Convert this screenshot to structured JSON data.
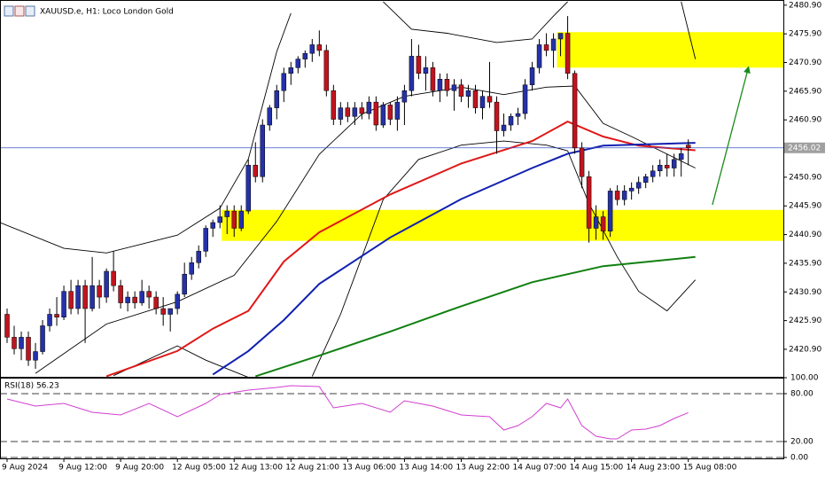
{
  "chart_data": {
    "type": "candlestick",
    "title": "XAUUSD.e, H1:  Loco London Gold",
    "up_color": "#2531a8",
    "down_color": "#c0141e",
    "xlim": [
      -1,
      109.4
    ],
    "ylim": [
      2416.1,
      2481.8
    ],
    "yticks": [
      {
        "value": 2480.9,
        "label": "2480.90"
      },
      {
        "value": 2475.9,
        "label": "2475.90"
      },
      {
        "value": 2470.9,
        "label": "2470.90"
      },
      {
        "value": 2465.9,
        "label": "2465.90"
      },
      {
        "value": 2460.9,
        "label": "2460.90"
      },
      {
        "value": 2450.9,
        "label": "2450.90"
      },
      {
        "value": 2445.9,
        "label": "2445.90"
      },
      {
        "value": 2440.9,
        "label": "2440.90"
      },
      {
        "value": 2435.9,
        "label": "2435.90"
      },
      {
        "value": 2430.9,
        "label": "2430.90"
      },
      {
        "value": 2425.9,
        "label": "2425.90"
      },
      {
        "value": 2420.9,
        "label": "2420.90"
      }
    ],
    "grid": false,
    "last_price": 2456.02,
    "last_price_color": "#3a54c8",
    "categories": [
      "9 Aug 2024",
      null,
      null,
      null,
      null,
      null,
      null,
      null,
      "9 Aug 12:00",
      null,
      null,
      null,
      null,
      null,
      null,
      null,
      "9 Aug 20:00",
      null,
      null,
      null,
      null,
      null,
      null,
      null,
      "12 Aug 05:00",
      null,
      null,
      null,
      null,
      null,
      null,
      null,
      "12 Aug 13:00",
      null,
      null,
      null,
      null,
      null,
      null,
      null,
      "12 Aug 21:00",
      null,
      null,
      null,
      null,
      null,
      null,
      null,
      "13 Aug 06:00",
      null,
      null,
      null,
      null,
      null,
      null,
      null,
      "13 Aug 14:00",
      null,
      null,
      null,
      null,
      null,
      null,
      null,
      "13 Aug 22:00",
      null,
      null,
      null,
      null,
      null,
      null,
      null,
      "14 Aug 07:00",
      null,
      null,
      null,
      null,
      null,
      null,
      null,
      "14 Aug 15:00",
      null,
      null,
      null,
      null,
      null,
      null,
      null,
      "14 Aug 23:00",
      null,
      null,
      null,
      null,
      null,
      null,
      null,
      "15 Aug 08:00"
    ],
    "open": [
      2427,
      2423,
      2421,
      2423,
      2419,
      2420.5,
      2425,
      2427,
      2426.5,
      2431,
      2428,
      2432,
      2428,
      2432,
      2430,
      2434.5,
      2432,
      2429,
      2430,
      2429,
      2431,
      2430,
      2428,
      2427,
      2428,
      2430.5,
      2434,
      2436,
      2438,
      2442,
      2443,
      2444,
      2445,
      2442,
      2445,
      2453,
      2451,
      2460,
      2463,
      2466,
      2469,
      2470,
      2471.5,
      2472.5,
      2474,
      2473,
      2466,
      2461,
      2463,
      2461.5,
      2463,
      2462,
      2464,
      2460,
      2463.5,
      2461,
      2464,
      2466,
      2472,
      2469,
      2470,
      2466,
      2468,
      2466,
      2467,
      2465,
      2466,
      2463,
      2465,
      2464,
      2459,
      2460,
      2461.5,
      2462,
      2467,
      2470,
      2474,
      2473,
      2475,
      2476,
      2469,
      2456,
      2451,
      2442,
      2444,
      2441.5,
      2448.5,
      2447,
      2448.5,
      2449,
      2450,
      2451,
      2452,
      2453,
      2452.5,
      2454,
      2456.5
    ],
    "high": [
      2428,
      2425,
      2424,
      2424,
      2422,
      2426,
      2428,
      2430,
      2432,
      2433,
      2433,
      2433,
      2437,
      2433,
      2435,
      2438,
      2433,
      2431,
      2431,
      2433,
      2432,
      2431,
      2430,
      2428,
      2431,
      2436,
      2437,
      2439,
      2442.5,
      2443.5,
      2446,
      2446,
      2446,
      2446,
      2454,
      2457,
      2461,
      2463.5,
      2467,
      2470,
      2471,
      2472,
      2473,
      2475,
      2476.5,
      2474,
      2467,
      2464,
      2464,
      2464,
      2464,
      2465,
      2465,
      2464,
      2464,
      2465,
      2467,
      2475,
      2474,
      2472,
      2471,
      2469,
      2469,
      2468,
      2468,
      2467,
      2467,
      2466,
      2471,
      2465,
      2462,
      2462,
      2463,
      2468,
      2471,
      2475,
      2476,
      2476,
      2476,
      2479,
      2469.5,
      2457,
      2452,
      2446,
      2445,
      2449,
      2449.5,
      2449.5,
      2450,
      2451,
      2451.5,
      2453,
      2454,
      2455,
      2455,
      2456,
      2457.5
    ],
    "low": [
      2422,
      2420,
      2419,
      2418,
      2417.5,
      2420,
      2424,
      2425,
      2426,
      2427,
      2427,
      2422,
      2427.5,
      2428,
      2429,
      2431,
      2428,
      2427.5,
      2428,
      2428.5,
      2428,
      2427,
      2425,
      2424,
      2427,
      2430,
      2433,
      2435,
      2437,
      2440.5,
      2442,
      2441,
      2440.5,
      2441.5,
      2444.5,
      2450,
      2450,
      2459,
      2461,
      2464,
      2467,
      2469,
      2470,
      2471,
      2472,
      2465,
      2460,
      2460,
      2460.5,
      2460,
      2461,
      2461,
      2459,
      2459.5,
      2460,
      2459,
      2460,
      2465,
      2468,
      2466,
      2465,
      2464,
      2465,
      2462.5,
      2464,
      2463,
      2462,
      2461,
      2463,
      2455,
      2458,
      2459,
      2460,
      2461,
      2466,
      2469,
      2472,
      2470,
      2472,
      2468,
      2455,
      2449,
      2439.5,
      2440,
      2440,
      2440.5,
      2446,
      2446,
      2447,
      2448,
      2449,
      2450,
      2451,
      2451,
      2451,
      2451,
      2453
    ],
    "close": [
      2423,
      2421,
      2423,
      2419,
      2420.5,
      2425,
      2427,
      2426.5,
      2431,
      2428,
      2432,
      2428,
      2432,
      2430,
      2434.5,
      2432,
      2429,
      2430,
      2429,
      2431,
      2430,
      2428,
      2427,
      2428,
      2430.5,
      2434,
      2436,
      2438,
      2442,
      2443,
      2444,
      2445,
      2442,
      2445,
      2453,
      2451,
      2460,
      2463,
      2466,
      2469,
      2470,
      2471.5,
      2472.5,
      2474,
      2473,
      2466,
      2461,
      2463,
      2461.5,
      2463,
      2462,
      2464,
      2460,
      2463.5,
      2461,
      2464,
      2466,
      2472,
      2469,
      2470,
      2466,
      2468,
      2466,
      2467,
      2465,
      2466,
      2463,
      2465,
      2464,
      2459,
      2460,
      2461.5,
      2462,
      2467,
      2470,
      2474,
      2473,
      2475,
      2476,
      2469,
      2456,
      2451,
      2442,
      2444,
      2441.5,
      2448.5,
      2447,
      2448.5,
      2449,
      2450,
      2451,
      2452,
      2453,
      2452.5,
      2454,
      2455,
      2456.02
    ],
    "zones": [
      {
        "x0": 77.5,
        "x1": 109.4,
        "ylim": [
          2470,
          2476.2
        ],
        "color": "#ffff00"
      },
      {
        "x0": 30.25,
        "x1": 109.4,
        "ylim": [
          2439.8,
          2445.2
        ],
        "color": "#ffff00"
      }
    ],
    "overlays": [
      {
        "color": "#000000",
        "width": 0.9,
        "x": [
          -1,
          8,
          14,
          24,
          30,
          34,
          38,
          40,
          41,
          53,
          57,
          62,
          69,
          74,
          77,
          79,
          80,
          95,
          97
        ],
        "values": [
          2443,
          2438.5,
          2437.7,
          2440.8,
          2445.5,
          2454.1,
          2472.8,
          2479.5,
          null,
          2481.5,
          2476.7,
          2476,
          2474.4,
          2475,
          2479,
          2481.5,
          null,
          2481.5,
          2471.5
        ]
      },
      {
        "color": "#000000",
        "width": 0.9,
        "x": [
          4,
          14,
          24,
          32,
          38,
          44,
          50,
          56,
          64,
          70,
          76,
          80,
          84,
          88,
          97
        ],
        "values": [
          2416.7,
          2425.3,
          2429.2,
          2433.8,
          2443.2,
          2454.9,
          2461.9,
          2465,
          2466.6,
          2465.3,
          2466.6,
          2466.8,
          2460.3,
          2458,
          2452.5
        ]
      },
      {
        "color": "#000000",
        "width": 0.9,
        "x": [
          15,
          24,
          28,
          34,
          35,
          43,
          47,
          50,
          53,
          58,
          64,
          70,
          76,
          79,
          82,
          86,
          89,
          93,
          97
        ],
        "values": [
          2416.3,
          2421.5,
          2419,
          2416,
          null,
          2416.2,
          2427,
          2437,
          2447,
          2454,
          2456.5,
          2457.2,
          2456.5,
          2455.5,
          2446.3,
          2437,
          2431,
          2427.6,
          2433
        ]
      },
      {
        "color": "#e01818",
        "width": 2,
        "x": [
          14,
          24,
          29,
          34,
          39,
          44,
          54,
          64,
          74,
          79,
          84,
          89,
          97
        ],
        "values": [
          2416.2,
          2420.6,
          2424.5,
          2427.6,
          2436.2,
          2441.3,
          2447.9,
          2453.3,
          2457.2,
          2460.6,
          2458,
          2456.4,
          2455.6
        ]
      },
      {
        "color": "#1020b0",
        "width": 2,
        "x": [
          29,
          34,
          39,
          44,
          54,
          64,
          74,
          79,
          84,
          97
        ],
        "values": [
          2416.5,
          2420.6,
          2426,
          2432.3,
          2440.4,
          2447.1,
          2452.5,
          2455,
          2456.4,
          2456.9
        ]
      },
      {
        "color": "#108010",
        "width": 2,
        "x": [
          35,
          44,
          54,
          64,
          74,
          84,
          97
        ],
        "values": [
          2416.2,
          2419.8,
          2424,
          2428.4,
          2432.6,
          2435.4,
          2437
        ]
      }
    ],
    "arrow": {
      "x": [
        99.4,
        104.4
      ],
      "values": [
        2446.1,
        2469.7
      ],
      "color": "#1a8a1a"
    },
    "rsi": {
      "title": "RSI(18) 56.23",
      "color": "#d040d0",
      "ylim": [
        0,
        100
      ],
      "yticks": [
        {
          "value": 100,
          "label": "100.00"
        },
        {
          "value": 80,
          "label": "80.00"
        },
        {
          "value": 20,
          "label": "20.00"
        },
        {
          "value": 0,
          "label": "0.00"
        }
      ],
      "x": [
        0,
        4,
        8,
        12,
        16,
        20,
        24,
        28,
        30,
        34,
        38,
        40,
        44,
        46,
        50,
        54,
        56,
        60,
        64,
        68,
        70,
        72,
        74,
        76,
        78,
        79,
        81,
        83,
        85,
        86,
        88,
        90,
        92,
        94,
        96
      ],
      "values": [
        73.3,
        64.4,
        67.8,
        56.7,
        53.3,
        67.8,
        51.1,
        67.8,
        78.9,
        84.4,
        87.8,
        90,
        88.9,
        62.2,
        67.8,
        56.7,
        71.1,
        64.4,
        53.3,
        51.1,
        34.4,
        40,
        51.1,
        67.8,
        62.2,
        73.3,
        40,
        26.7,
        23.3,
        23.3,
        34.4,
        35.6,
        40,
        48.9,
        56.23
      ]
    }
  }
}
